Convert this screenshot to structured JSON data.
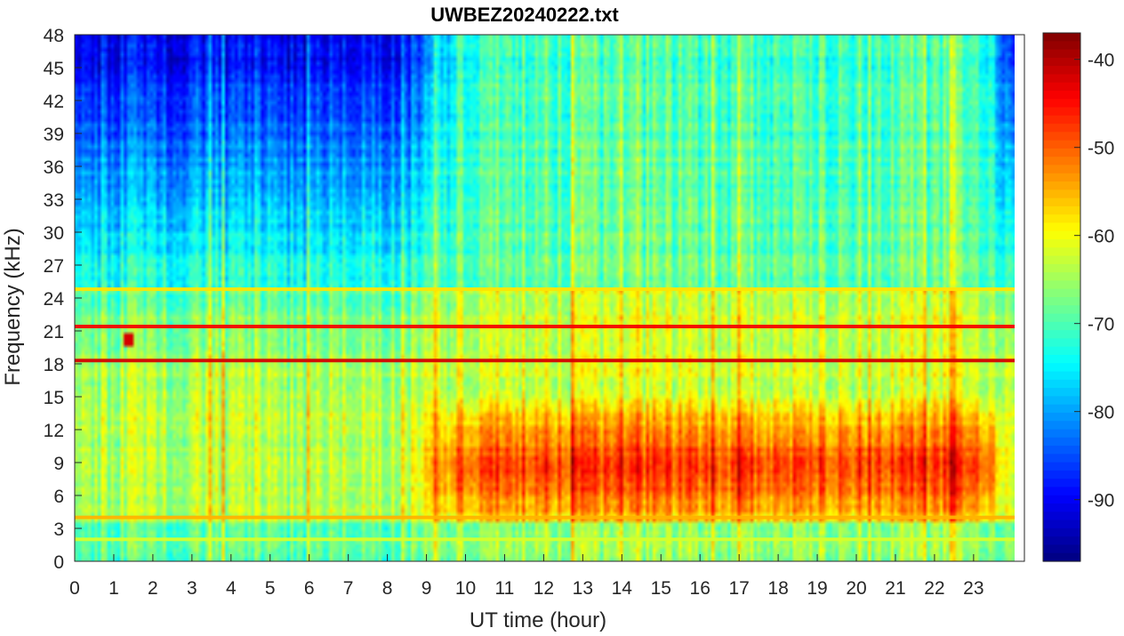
{
  "chart_data": {
    "type": "heatmap",
    "title": "UWBEZ20240222.txt",
    "xlabel": "UT time (hour)",
    "ylabel": "Frequency (kHz)",
    "xlim": [
      0,
      24
    ],
    "ylim": [
      0,
      48
    ],
    "x_ticks": [
      0,
      1,
      2,
      3,
      4,
      5,
      6,
      7,
      8,
      9,
      10,
      11,
      12,
      13,
      14,
      15,
      16,
      17,
      18,
      19,
      20,
      21,
      22,
      23
    ],
    "y_ticks": [
      0,
      3,
      6,
      9,
      12,
      15,
      18,
      21,
      24,
      27,
      30,
      33,
      36,
      39,
      42,
      45,
      48
    ],
    "colorbar": {
      "colormap": "jet",
      "range": [
        -97,
        -37
      ],
      "ticks": [
        -90,
        -80,
        -70,
        -60,
        -50,
        -40
      ]
    },
    "grid": false,
    "horizontal_lines": [
      {
        "freq": 18.3,
        "level": -42
      },
      {
        "freq": 21.4,
        "level": -44
      },
      {
        "freq": 24.8,
        "level": -58
      },
      {
        "freq": 4.0,
        "level": -55
      },
      {
        "freq": 2.0,
        "level": -62
      }
    ],
    "features": [
      {
        "desc": "day-time broadband enhancement",
        "t_range": [
          9.3,
          23.8
        ],
        "f_range": [
          3.5,
          14
        ],
        "level": -48
      },
      {
        "desc": "night-time quiet upper band",
        "t_range": [
          0,
          9
        ],
        "f_range": [
          25,
          48
        ],
        "level": -88
      },
      {
        "desc": "burst",
        "t": 1.4,
        "f_range": [
          19.5,
          20.8
        ],
        "level": -42
      }
    ]
  }
}
